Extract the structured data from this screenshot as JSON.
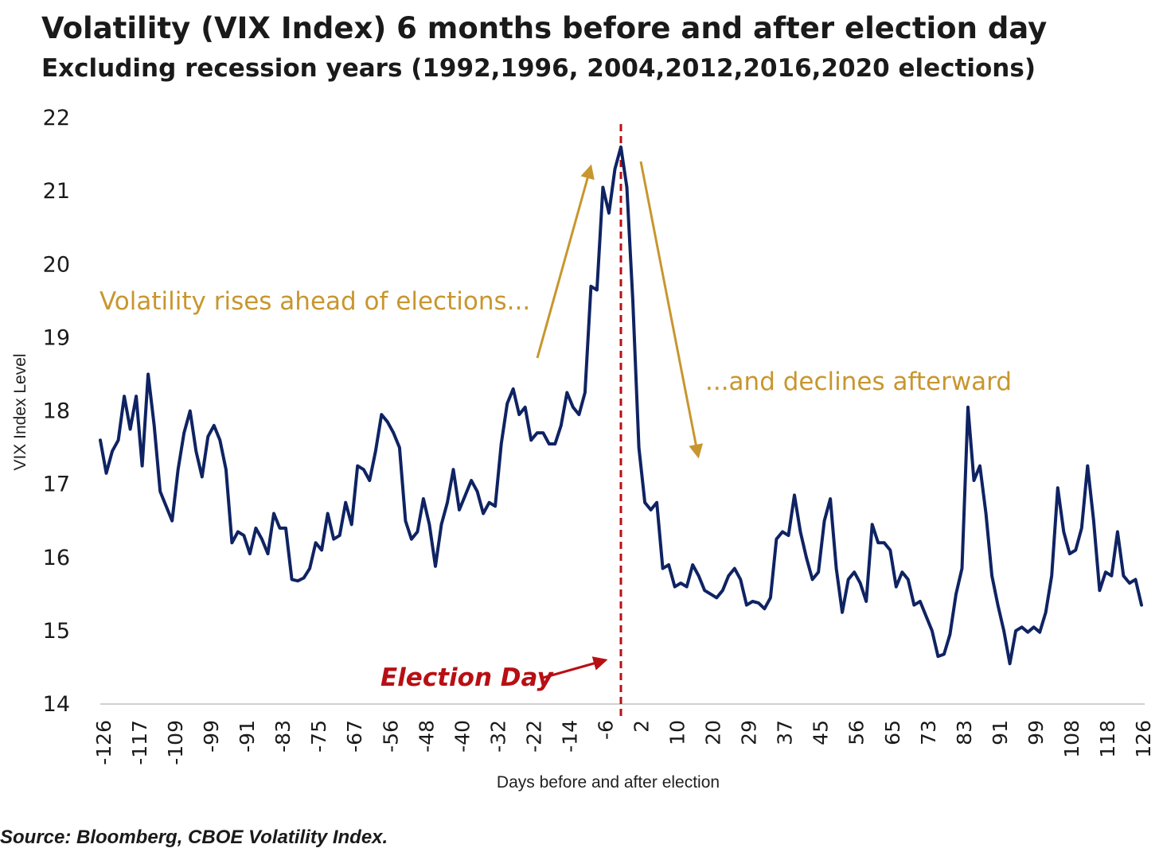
{
  "chart_data": {
    "type": "line",
    "title": "Volatility (VIX Index) 6 months before and after election day",
    "subtitle": "Excluding recession years (1992,1996, 2004,2012,2016,2020 elections)",
    "xlabel": "Days before and after election",
    "ylabel": "VIX Index Level",
    "ylim": [
      14,
      22
    ],
    "y_ticks": [
      "22",
      "21",
      "20",
      "19",
      "18",
      "17",
      "16",
      "15",
      "14"
    ],
    "x_ticks": [
      "-126",
      "-117",
      "-109",
      "-99",
      "-91",
      "-83",
      "-75",
      "-67",
      "-56",
      "-48",
      "-40",
      "-32",
      "-22",
      "-14",
      "-6",
      "2",
      "10",
      "20",
      "29",
      "37",
      "45",
      "56",
      "65",
      "73",
      "83",
      "91",
      "99",
      "108",
      "118",
      "126"
    ],
    "grid": false,
    "legend": "none",
    "series": [
      {
        "color": "#0f2363",
        "values": [
          17.6,
          17.15,
          17.45,
          17.6,
          18.2,
          17.75,
          18.2,
          17.25,
          18.5,
          17.8,
          16.9,
          16.7,
          16.5,
          17.2,
          17.7,
          18.0,
          17.45,
          17.1,
          17.65,
          17.8,
          17.6,
          17.2,
          16.2,
          16.35,
          16.3,
          16.05,
          16.4,
          16.25,
          16.05,
          16.6,
          16.4,
          16.4,
          15.7,
          15.68,
          15.72,
          15.85,
          16.2,
          16.1,
          16.6,
          16.25,
          16.3,
          16.75,
          16.45,
          17.25,
          17.2,
          17.05,
          17.45,
          17.95,
          17.85,
          17.7,
          17.5,
          16.5,
          16.25,
          16.35,
          16.8,
          16.45,
          15.88,
          16.45,
          16.75,
          17.2,
          16.65,
          16.85,
          17.05,
          16.9,
          16.6,
          16.75,
          16.7,
          17.55,
          18.1,
          18.3,
          17.95,
          18.05,
          17.6,
          17.7,
          17.7,
          17.55,
          17.55,
          17.8,
          18.25,
          18.05,
          17.95,
          18.25,
          19.7,
          19.65,
          21.05,
          20.7,
          21.3,
          21.6,
          21.05,
          19.5,
          17.5,
          16.75,
          16.65,
          16.75,
          15.85,
          15.9,
          15.6,
          15.65,
          15.6,
          15.9,
          15.75,
          15.55,
          15.5,
          15.45,
          15.55,
          15.75,
          15.85,
          15.7,
          15.35,
          15.4,
          15.38,
          15.3,
          15.45,
          16.25,
          16.35,
          16.3,
          16.85,
          16.35,
          16.0,
          15.7,
          15.8,
          16.5,
          16.8,
          15.85,
          15.25,
          15.7,
          15.8,
          15.65,
          15.4,
          16.45,
          16.2,
          16.2,
          16.1,
          15.6,
          15.8,
          15.7,
          15.35,
          15.4,
          15.2,
          15.0,
          14.65,
          14.68,
          14.95,
          15.5,
          15.85,
          18.05,
          17.05,
          17.25,
          16.6,
          15.75,
          15.35,
          15.0,
          14.55,
          15.0,
          15.05,
          14.98,
          15.05,
          14.98,
          15.25,
          15.75,
          16.95,
          16.35,
          16.05,
          16.1,
          16.4,
          17.25,
          16.5,
          15.55,
          15.8,
          15.75,
          16.35,
          15.75,
          15.65,
          15.7,
          15.35
        ]
      }
    ],
    "annotations": {
      "rise": "Volatility rises ahead of elections...",
      "decline": "...and declines afterward",
      "election_day": "Election Day"
    },
    "annotation_colors": {
      "gold": "#c8962e",
      "red": "#b80f14"
    },
    "source": "Source: Bloomberg, CBOE Volatility Index."
  }
}
